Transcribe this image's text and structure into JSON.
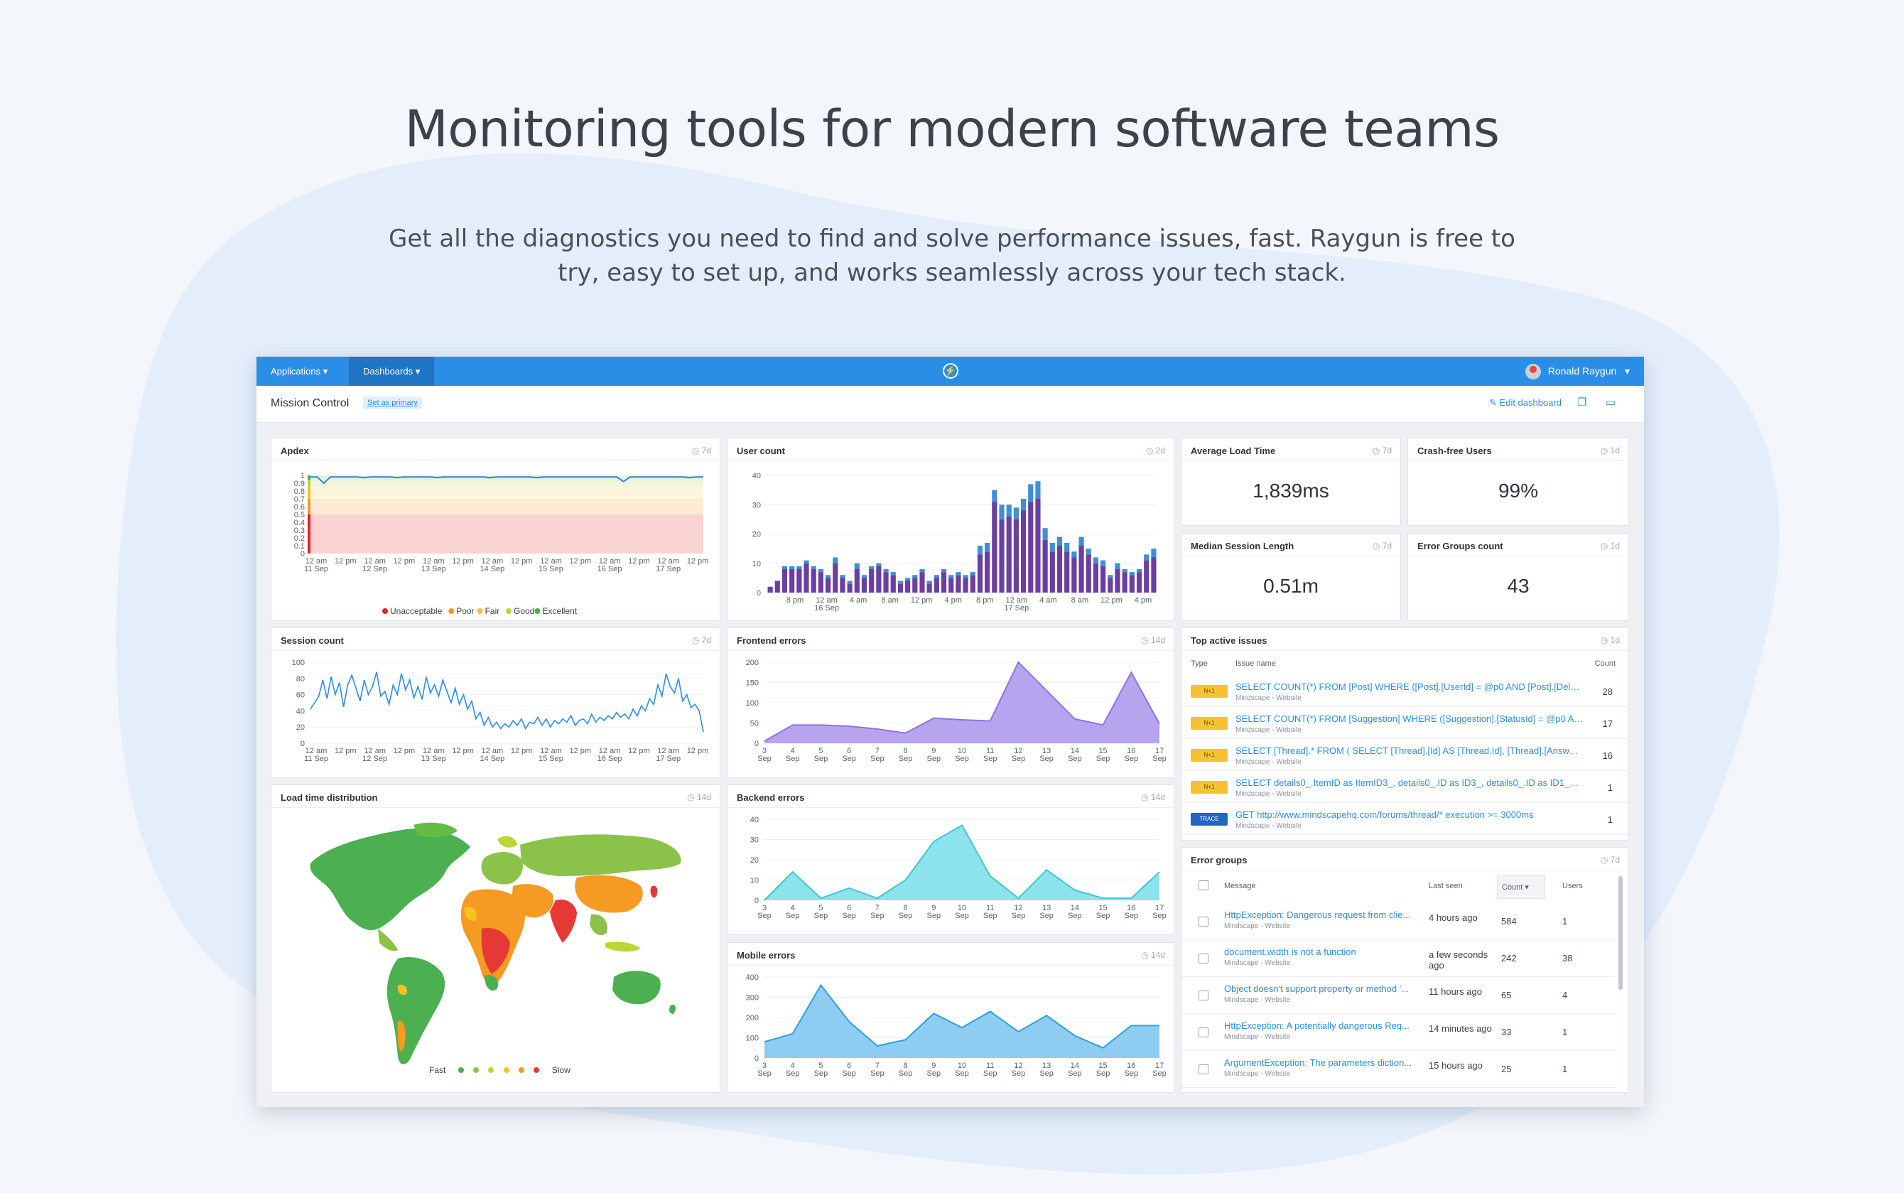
{
  "hero": {
    "title": "Monitoring tools for modern software teams",
    "subtitle": "Get all the diagnostics you need to find and solve performance issues, fast. Raygun is free to try, easy to set up, and works seamlessly across your tech stack."
  },
  "topbar": {
    "applications_label": "Applications",
    "dashboards_label": "Dashboards",
    "user_name": "Ronald Raygun",
    "logo_glyph": "⚡"
  },
  "subbar": {
    "title": "Mission Control",
    "set_primary": "Set as primary",
    "edit_dashboard": "Edit dashboard"
  },
  "cards": {
    "apdex": {
      "title": "Apdex",
      "range": "7d"
    },
    "user_count": {
      "title": "User count",
      "range": "2d"
    },
    "avg_load": {
      "title": "Average Load Time",
      "range": "7d",
      "value": "1,839ms"
    },
    "crash_free": {
      "title": "Crash-free Users",
      "range": "1d",
      "value": "99%"
    },
    "median_session": {
      "title": "Median Session Length",
      "range": "7d",
      "value": "0.51m"
    },
    "error_groups_count": {
      "title": "Error Groups count",
      "range": "1d",
      "value": "43"
    },
    "session_count": {
      "title": "Session count",
      "range": "7d"
    },
    "frontend_errors": {
      "title": "Frontend errors",
      "range": "14d"
    },
    "top_issues": {
      "title": "Top active issues",
      "range": "1d"
    },
    "load_dist": {
      "title": "Load time distribution",
      "range": "14d",
      "fast_label": "Fast",
      "slow_label": "Slow"
    },
    "backend_errors": {
      "title": "Backend errors",
      "range": "14d"
    },
    "mobile_errors": {
      "title": "Mobile errors",
      "range": "14d"
    },
    "error_groups": {
      "title": "Error groups",
      "range": "7d"
    }
  },
  "top_issues": {
    "headers": {
      "type": "Type",
      "name": "Issue name",
      "count": "Count"
    },
    "rows": [
      {
        "badge": "N+1",
        "name": "SELECT COUNT(*) FROM [Post] WHERE ([Post].[UserId] = @p0 AND [Post].[Deleted...",
        "source": "Mindscape - Website",
        "count": "28"
      },
      {
        "badge": "N+1",
        "name": "SELECT COUNT(*) FROM [Suggestion] WHERE ([Suggestion].[StatusId] = @p0 AND [...",
        "source": "Mindscape - Website",
        "count": "17"
      },
      {
        "badge": "N+1",
        "name": "SELECT [Thread].* FROM ( SELECT [Thread].[Id] AS [Thread.Id], [Thread].[Answered]...",
        "source": "Mindscape - Website",
        "count": "16"
      },
      {
        "badge": "N+1",
        "name": "SELECT details0_.ItemID as ItemID3_, details0_.ID as ID3_, details0_.ID as ID1_2_, de...",
        "source": "Mindscape - Website",
        "count": "1"
      },
      {
        "badge": "TRACE",
        "name": "GET http://www.mindscapehq.com/forums/thread/* execution >= 3000ms",
        "source": "Mindscape - Website",
        "count": "1"
      }
    ]
  },
  "error_groups": {
    "headers": {
      "message": "Message",
      "last_seen": "Last seen",
      "count": "Count",
      "users": "Users"
    },
    "rows": [
      {
        "message": "HttpException: Dangerous request from clie...",
        "source": "Mindscape - Website",
        "last_seen": "4 hours ago",
        "count": "584",
        "users": "1"
      },
      {
        "message": "document.width is not a function",
        "source": "Mindscape - Website",
        "last_seen": "a few seconds ago",
        "count": "242",
        "users": "38"
      },
      {
        "message": "Object doesn't support property or method '...",
        "source": "Mindscape - Website",
        "last_seen": "11 hours ago",
        "count": "65",
        "users": "4"
      },
      {
        "message": "HttpException: A potentially dangerous Req...",
        "source": "Mindscape - Website",
        "last_seen": "14 minutes ago",
        "count": "33",
        "users": "1"
      },
      {
        "message": "ArgumentException: The parameters diction...",
        "source": "Mindscape - Website",
        "last_seen": "15 hours ago",
        "count": "25",
        "users": "1"
      }
    ]
  },
  "colors": {
    "accent": "#2a8ee6",
    "purple": "#6a3fa0",
    "blue": "#3f8fd6",
    "lavender": "#b7a4ee",
    "teal": "#8de3ec",
    "sky": "#8ecdf1"
  },
  "chart_data": [
    {
      "type": "line",
      "id": "apdex",
      "ylim": [
        0,
        1
      ],
      "yticks": [
        "0",
        "0.1",
        "0.2",
        "0.3",
        "0.4",
        "0.5",
        "0.6",
        "0.7",
        "0.8",
        "0.9",
        "1"
      ],
      "xticks": [
        "12 am\n11 Sep",
        "12 pm",
        "12 am\n12 Sep",
        "12 pm",
        "12 am\n13 Sep",
        "12 pm",
        "12 am\n14 Sep",
        "12 pm",
        "12 am\n15 Sep",
        "12 pm",
        "12 am\n16 Sep",
        "12 pm",
        "12 am\n17 Sep",
        "12 pm"
      ],
      "values": [
        0.98,
        0.98,
        0.9,
        0.98,
        0.98,
        0.98,
        0.98,
        0.98,
        0.97,
        0.98,
        0.98,
        0.98,
        0.98,
        0.97,
        0.98,
        0.98,
        0.98,
        0.98,
        0.98,
        0.97,
        0.98,
        0.98,
        0.98,
        0.98,
        0.98,
        0.98,
        0.98,
        0.97,
        0.98,
        0.98,
        0.98,
        0.98,
        0.98,
        0.98,
        0.97,
        0.98,
        0.98,
        0.98,
        0.98,
        0.98,
        0.98,
        0.98,
        0.98,
        0.98,
        0.98,
        0.98,
        0.98,
        0.92,
        0.98,
        0.98,
        0.98,
        0.98,
        0.98,
        0.98,
        0.98,
        0.98,
        0.98,
        0.97,
        0.98,
        0.98
      ],
      "bands": [
        {
          "from": 0,
          "to": 0.5,
          "color": "#f8d3d2"
        },
        {
          "from": 0.5,
          "to": 0.7,
          "color": "#fdebd6"
        },
        {
          "from": 0.7,
          "to": 0.85,
          "color": "#fdf6dc"
        },
        {
          "from": 0.85,
          "to": 0.94,
          "color": "#eef6dc"
        },
        {
          "from": 0.94,
          "to": 1,
          "color": "#e2f1e4"
        }
      ],
      "legend": [
        "Unacceptable",
        "Poor",
        "Fair",
        "Good",
        "Excellent"
      ],
      "legend_colors": [
        "#e02424",
        "#f59a23",
        "#f5c323",
        "#bcd635",
        "#4caf50"
      ]
    },
    {
      "type": "bar",
      "id": "user_count",
      "ylim": [
        0,
        40
      ],
      "yticks": [
        "0",
        "10",
        "20",
        "30",
        "40"
      ],
      "xticks": [
        "8 pm",
        "12 am\n16 Sep",
        "4 am",
        "8 am",
        "12 pm",
        "4 pm",
        "8 pm",
        "12 am\n17 Sep",
        "4 am",
        "8 am",
        "12 pm",
        "4 pm"
      ],
      "series": [
        {
          "name": "",
          "values": [
            2,
            4,
            8,
            8,
            8,
            10,
            8,
            7,
            5,
            10,
            5,
            3,
            8,
            5,
            8,
            9,
            7,
            6,
            3,
            4,
            5,
            7,
            3,
            5,
            7,
            5,
            6,
            5,
            6,
            13,
            14,
            31,
            25,
            26,
            25,
            28,
            31,
            32,
            18,
            14,
            16,
            14,
            12,
            16,
            13,
            10,
            9,
            5,
            8,
            7,
            6,
            7,
            11,
            12
          ]
        },
        {
          "name": "",
          "values": [
            0,
            0,
            1,
            1,
            1,
            1,
            1,
            1,
            1,
            2,
            1,
            1,
            2,
            1,
            1,
            1,
            1,
            1,
            1,
            1,
            1,
            1,
            1,
            1,
            1,
            1,
            1,
            1,
            1,
            3,
            3,
            4,
            5,
            4,
            4,
            4,
            6,
            6,
            4,
            3,
            3,
            3,
            2,
            3,
            2,
            2,
            2,
            1,
            2,
            1,
            1,
            1,
            2,
            3
          ]
        }
      ]
    },
    {
      "type": "line",
      "id": "session_count",
      "ylim": [
        0,
        100
      ],
      "yticks": [
        "0",
        "20",
        "40",
        "60",
        "80",
        "100"
      ],
      "xticks": [
        "12 am\n11 Sep",
        "12 pm",
        "12 am\n12 Sep",
        "12 pm",
        "12 am\n13 Sep",
        "12 pm",
        "12 am\n14 Sep",
        "12 pm",
        "12 am\n15 Sep",
        "12 pm",
        "12 am\n16 Sep",
        "12 pm",
        "12 am\n17 Sep",
        "12 pm"
      ],
      "values": [
        42,
        50,
        58,
        78,
        55,
        82,
        60,
        75,
        45,
        72,
        84,
        68,
        52,
        78,
        60,
        70,
        88,
        58,
        64,
        48,
        72,
        60,
        86,
        66,
        78,
        56,
        70,
        54,
        82,
        62,
        72,
        58,
        78,
        64,
        50,
        68,
        48,
        60,
        42,
        52,
        30,
        38,
        22,
        32,
        20,
        26,
        18,
        24,
        20,
        28,
        22,
        30,
        18,
        26,
        24,
        32,
        22,
        30,
        20,
        28,
        24,
        30,
        26,
        34,
        22,
        28,
        30,
        24,
        36,
        26,
        32,
        28,
        34,
        30,
        38,
        32,
        36,
        30,
        42,
        34,
        46,
        40,
        55,
        48,
        72,
        58,
        86,
        70,
        62,
        80,
        52,
        60,
        44,
        48,
        40,
        14
      ]
    },
    {
      "type": "area",
      "id": "frontend_errors",
      "ylim": [
        0,
        200
      ],
      "yticks": [
        "0",
        "50",
        "100",
        "150",
        "200"
      ],
      "categories": [
        "3\nSep",
        "4\nSep",
        "5\nSep",
        "6\nSep",
        "7\nSep",
        "8\nSep",
        "9\nSep",
        "10\nSep",
        "11\nSep",
        "12\nSep",
        "13\nSep",
        "14\nSep",
        "15\nSep",
        "16\nSep",
        "17\nSep"
      ],
      "values": [
        5,
        45,
        45,
        42,
        35,
        25,
        62,
        58,
        55,
        200,
        130,
        60,
        45,
        175,
        48
      ]
    },
    {
      "type": "area",
      "id": "backend_errors",
      "ylim": [
        0,
        40
      ],
      "yticks": [
        "0",
        "10",
        "20",
        "30",
        "40"
      ],
      "categories": [
        "3\nSep",
        "4\nSep",
        "5\nSep",
        "6\nSep",
        "7\nSep",
        "8\nSep",
        "9\nSep",
        "10\nSep",
        "11\nSep",
        "12\nSep",
        "13\nSep",
        "14\nSep",
        "15\nSep",
        "16\nSep",
        "17\nSep"
      ],
      "values": [
        0,
        14,
        1,
        6,
        1,
        10,
        29,
        37,
        12,
        1,
        15,
        5,
        1,
        1,
        14
      ]
    },
    {
      "type": "area",
      "id": "mobile_errors",
      "ylim": [
        0,
        400
      ],
      "yticks": [
        "0",
        "100",
        "200",
        "300",
        "400"
      ],
      "categories": [
        "3\nSep",
        "4\nSep",
        "5\nSep",
        "6\nSep",
        "7\nSep",
        "8\nSep",
        "9\nSep",
        "10\nSep",
        "11\nSep",
        "12\nSep",
        "13\nSep",
        "14\nSep",
        "15\nSep",
        "16\nSep",
        "17\nSep"
      ],
      "values": [
        80,
        120,
        360,
        180,
        60,
        90,
        220,
        150,
        230,
        130,
        210,
        110,
        50,
        160,
        160
      ]
    }
  ]
}
